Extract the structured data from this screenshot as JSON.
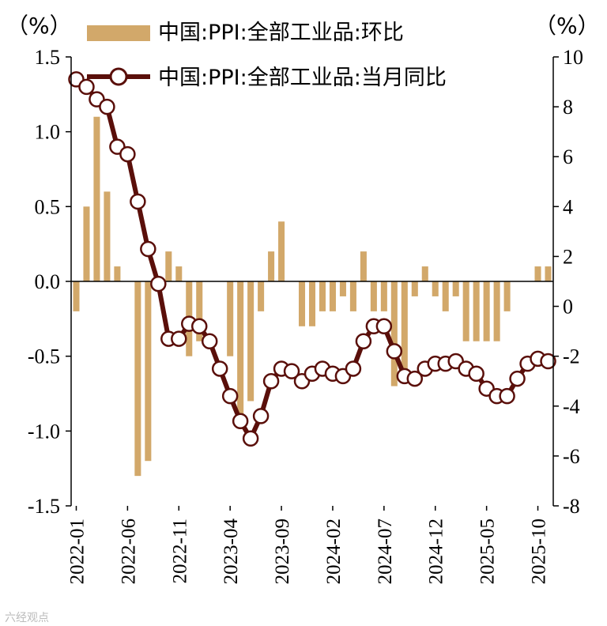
{
  "chart_data": {
    "type": "bar+line",
    "left_axis_unit": "（%）",
    "right_axis_unit": "（%）",
    "left_ylim": [
      -1.5,
      1.5
    ],
    "left_ticks": [
      "1.5",
      "1.0",
      "0.5",
      "0.0",
      "-0.5",
      "-1.0",
      "-1.5"
    ],
    "right_ylim": [
      -8,
      10
    ],
    "right_ticks": [
      "10",
      "8",
      "6",
      "4",
      "2",
      "0",
      "-2",
      "-4",
      "-6",
      "-8"
    ],
    "x_tick_labels": [
      "2022-01",
      "2022-06",
      "2022-11",
      "2023-04",
      "2023-09",
      "2024-02",
      "2024-07",
      "2024-12",
      "2025-05",
      "2025-10"
    ],
    "legend_position": "top",
    "grid": false,
    "months": [
      "2022-01",
      "2022-02",
      "2022-03",
      "2022-04",
      "2022-05",
      "2022-06",
      "2022-07",
      "2022-08",
      "2022-09",
      "2022-10",
      "2022-11",
      "2022-12",
      "2023-01",
      "2023-02",
      "2023-03",
      "2023-04",
      "2023-05",
      "2023-06",
      "2023-07",
      "2023-08",
      "2023-09",
      "2023-10",
      "2023-11",
      "2023-12",
      "2024-01",
      "2024-02",
      "2024-03",
      "2024-04",
      "2024-05",
      "2024-06",
      "2024-07",
      "2024-08",
      "2024-09",
      "2024-10",
      "2024-11",
      "2024-12",
      "2025-01",
      "2025-02",
      "2025-03",
      "2025-04",
      "2025-05",
      "2025-06",
      "2025-07",
      "2025-08",
      "2025-09",
      "2025-10",
      "2025-11"
    ],
    "series": [
      {
        "name": "中国:PPI:全部工业品:环比",
        "type": "bar",
        "axis": "left",
        "color": "#d2a86a",
        "values": [
          -0.2,
          0.5,
          1.1,
          0.6,
          0.1,
          0.0,
          -1.3,
          -1.2,
          0.0,
          0.2,
          0.1,
          -0.5,
          -0.4,
          0.0,
          0.0,
          -0.5,
          -0.9,
          -0.8,
          -0.2,
          0.2,
          0.4,
          0.0,
          -0.3,
          -0.3,
          -0.2,
          -0.2,
          -0.1,
          -0.2,
          0.2,
          -0.2,
          -0.2,
          -0.7,
          -0.6,
          -0.1,
          0.1,
          -0.1,
          -0.2,
          -0.1,
          -0.4,
          -0.4,
          -0.4,
          -0.4,
          -0.2,
          0.0,
          0.0,
          0.1,
          0.1
        ]
      },
      {
        "name": "中国:PPI:全部工业品:当月同比",
        "type": "line",
        "axis": "right",
        "color": "#5a0f0a",
        "values": [
          9.1,
          8.8,
          8.3,
          8.0,
          6.4,
          6.1,
          4.2,
          2.3,
          0.9,
          -1.3,
          -1.3,
          -0.7,
          -0.8,
          -1.4,
          -2.5,
          -3.6,
          -4.6,
          -5.3,
          -4.4,
          -3.0,
          -2.5,
          -2.6,
          -3.0,
          -2.7,
          -2.5,
          -2.7,
          -2.8,
          -2.5,
          -1.4,
          -0.8,
          -0.8,
          -1.8,
          -2.8,
          -2.9,
          -2.5,
          -2.3,
          -2.3,
          -2.2,
          -2.5,
          -2.7,
          -3.3,
          -3.6,
          -3.6,
          -2.9,
          -2.3,
          -2.1,
          -2.2
        ]
      }
    ]
  },
  "watermark": "六经观点"
}
